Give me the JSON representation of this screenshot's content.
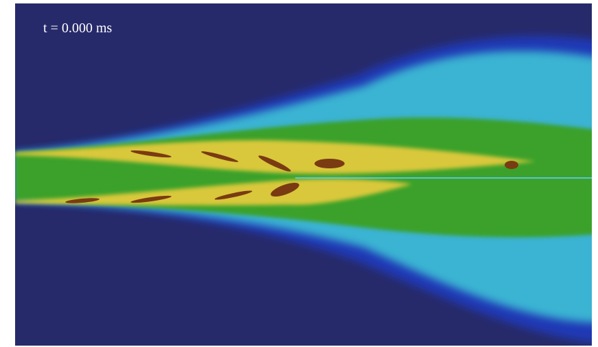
{
  "label": "t = 0.000 ms"
}
